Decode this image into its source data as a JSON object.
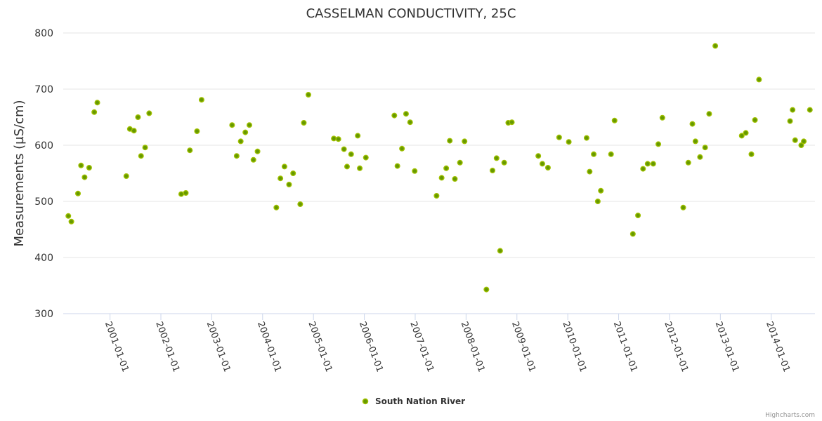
{
  "chart_data": {
    "type": "scatter",
    "title": "CASSELMAN CONDUCTIVITY, 25C",
    "xlabel": "",
    "ylabel": "Measurements (µS/cm)",
    "ylim": [
      300,
      800
    ],
    "yticks": [
      "300",
      "400",
      "500",
      "600",
      "700",
      "800"
    ],
    "xlim": [
      2000.08,
      2014.86
    ],
    "xticks": [
      {
        "label": "2001-01-01",
        "x": 2001.0
      },
      {
        "label": "2002-01-01",
        "x": 2002.0
      },
      {
        "label": "2003-01-01",
        "x": 2003.0
      },
      {
        "label": "2004-01-01",
        "x": 2004.0
      },
      {
        "label": "2005-01-01",
        "x": 2005.0
      },
      {
        "label": "2006-01-01",
        "x": 2006.0
      },
      {
        "label": "2007-01-01",
        "x": 2007.0
      },
      {
        "label": "2008-01-01",
        "x": 2008.0
      },
      {
        "label": "2009-01-01",
        "x": 2009.0
      },
      {
        "label": "2010-01-01",
        "x": 2010.0
      },
      {
        "label": "2011-01-01",
        "x": 2011.0
      },
      {
        "label": "2012-01-01",
        "x": 2012.0
      },
      {
        "label": "2013-01-01",
        "x": 2013.0
      },
      {
        "label": "2014-01-01",
        "x": 2014.0
      }
    ],
    "grid": true,
    "legend_position": "bottom-center",
    "series": [
      {
        "name": "South Nation River",
        "color": "#669900",
        "points": [
          [
            2000.18,
            474
          ],
          [
            2000.24,
            464
          ],
          [
            2000.37,
            514
          ],
          [
            2000.43,
            564
          ],
          [
            2000.5,
            543
          ],
          [
            2000.59,
            560
          ],
          [
            2000.69,
            659
          ],
          [
            2000.75,
            676
          ],
          [
            2001.32,
            545
          ],
          [
            2001.39,
            629
          ],
          [
            2001.47,
            626
          ],
          [
            2001.55,
            650
          ],
          [
            2001.61,
            581
          ],
          [
            2001.69,
            596
          ],
          [
            2001.77,
            657
          ],
          [
            2002.4,
            513
          ],
          [
            2002.49,
            515
          ],
          [
            2002.57,
            591
          ],
          [
            2002.71,
            625
          ],
          [
            2002.8,
            681
          ],
          [
            2003.4,
            636
          ],
          [
            2003.49,
            581
          ],
          [
            2003.57,
            607
          ],
          [
            2003.66,
            623
          ],
          [
            2003.74,
            636
          ],
          [
            2003.82,
            574
          ],
          [
            2003.9,
            589
          ],
          [
            2004.27,
            489
          ],
          [
            2004.35,
            541
          ],
          [
            2004.43,
            562
          ],
          [
            2004.52,
            530
          ],
          [
            2004.6,
            550
          ],
          [
            2004.74,
            495
          ],
          [
            2004.81,
            640
          ],
          [
            2004.9,
            690
          ],
          [
            2005.4,
            612
          ],
          [
            2005.49,
            611
          ],
          [
            2005.6,
            593
          ],
          [
            2005.66,
            562
          ],
          [
            2005.74,
            584
          ],
          [
            2005.87,
            617
          ],
          [
            2005.91,
            559
          ],
          [
            2006.03,
            578
          ],
          [
            2006.59,
            653
          ],
          [
            2006.65,
            563
          ],
          [
            2006.74,
            594
          ],
          [
            2006.82,
            656
          ],
          [
            2006.9,
            641
          ],
          [
            2006.99,
            554
          ],
          [
            2007.42,
            510
          ],
          [
            2007.52,
            542
          ],
          [
            2007.61,
            559
          ],
          [
            2007.68,
            608
          ],
          [
            2007.78,
            540
          ],
          [
            2007.88,
            569
          ],
          [
            2007.97,
            607
          ],
          [
            2008.4,
            343
          ],
          [
            2008.52,
            555
          ],
          [
            2008.6,
            577
          ],
          [
            2008.67,
            412
          ],
          [
            2008.75,
            569
          ],
          [
            2008.83,
            640
          ],
          [
            2008.9,
            641
          ],
          [
            2009.42,
            581
          ],
          [
            2009.5,
            567
          ],
          [
            2009.61,
            560
          ],
          [
            2009.83,
            614
          ],
          [
            2010.02,
            606
          ],
          [
            2010.37,
            613
          ],
          [
            2010.43,
            553
          ],
          [
            2010.51,
            584
          ],
          [
            2010.59,
            500
          ],
          [
            2010.65,
            519
          ],
          [
            2010.85,
            584
          ],
          [
            2010.92,
            644
          ],
          [
            2011.28,
            442
          ],
          [
            2011.38,
            475
          ],
          [
            2011.48,
            558
          ],
          [
            2011.57,
            567
          ],
          [
            2011.68,
            567
          ],
          [
            2011.78,
            602
          ],
          [
            2011.86,
            649
          ],
          [
            2012.27,
            489
          ],
          [
            2012.37,
            569
          ],
          [
            2012.45,
            638
          ],
          [
            2012.51,
            607
          ],
          [
            2012.6,
            579
          ],
          [
            2012.7,
            596
          ],
          [
            2012.78,
            656
          ],
          [
            2012.9,
            777
          ],
          [
            2013.42,
            617
          ],
          [
            2013.5,
            622
          ],
          [
            2013.61,
            584
          ],
          [
            2013.68,
            645
          ],
          [
            2013.76,
            717
          ],
          [
            2014.37,
            643
          ],
          [
            2014.42,
            663
          ],
          [
            2014.47,
            609
          ],
          [
            2014.59,
            600
          ],
          [
            2014.64,
            607
          ],
          [
            2014.76,
            663
          ]
        ]
      }
    ],
    "credits": "Highcharts.com"
  }
}
